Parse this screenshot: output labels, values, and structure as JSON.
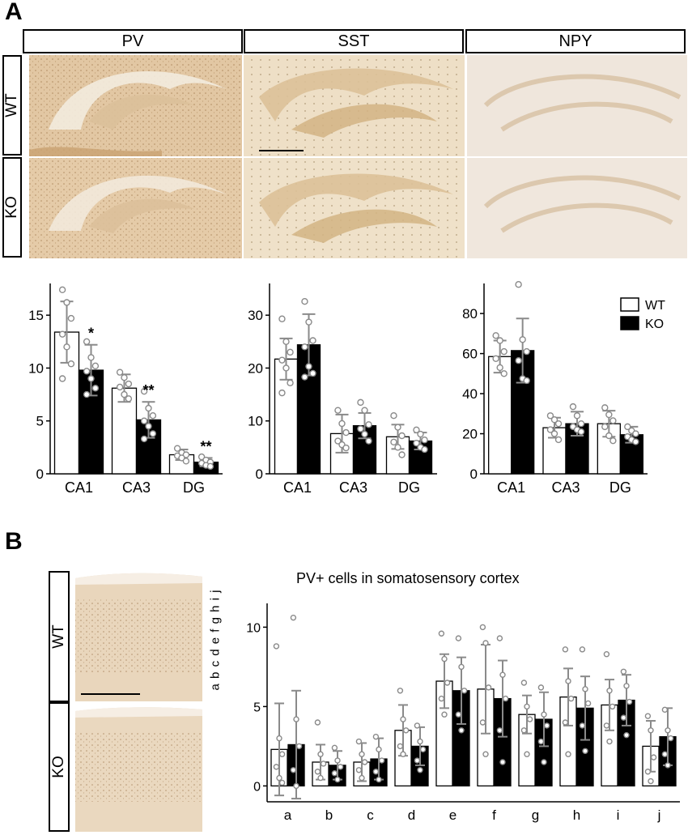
{
  "panel_labels": {
    "a": "A",
    "b": "B"
  },
  "stains": [
    "PV",
    "SST",
    "NPY"
  ],
  "genotypes": [
    "WT",
    "KO"
  ],
  "legend": {
    "wt": "WT",
    "ko": "KO"
  },
  "cortex_layers_label": "a b c d e f g h i j",
  "colors": {
    "wt_bar": "#ffffff",
    "ko_bar": "#000000",
    "error_bar": "#8a8a8a",
    "points": "#8a8a8a"
  },
  "chart_data": [
    {
      "type": "bar",
      "stain": "PV",
      "categories": [
        "CA1",
        "CA3",
        "DG"
      ],
      "ylim": [
        0,
        18
      ],
      "yticks": [
        0,
        5,
        10,
        15
      ],
      "series": [
        {
          "name": "WT",
          "values": [
            13.4,
            8.1,
            1.8
          ],
          "sd": [
            2.9,
            1.3,
            0.5
          ],
          "points": [
            [
              17.4,
              16.2,
              14.7,
              13.2,
              12.0,
              10.4,
              9.0
            ],
            [
              9.6,
              9.1,
              8.5,
              8.2,
              7.5,
              7.1
            ],
            [
              2.4,
              2.0,
              1.8,
              1.7,
              1.5,
              1.2
            ]
          ]
        },
        {
          "name": "KO",
          "values": [
            9.8,
            5.1,
            1.1
          ],
          "sd": [
            2.4,
            1.7,
            0.4
          ],
          "points": [
            [
              12.5,
              11.0,
              10.2,
              9.7,
              9.0,
              8.1,
              7.5
            ],
            [
              7.8,
              6.2,
              5.5,
              5.0,
              4.5,
              3.8,
              3.3
            ],
            [
              1.6,
              1.3,
              1.1,
              1.0,
              0.8,
              0.7
            ]
          ]
        }
      ],
      "significance": [
        "*",
        "**",
        "**"
      ]
    },
    {
      "type": "bar",
      "stain": "SST",
      "categories": [
        "CA1",
        "CA3",
        "DG"
      ],
      "ylim": [
        0,
        36
      ],
      "yticks": [
        0,
        10,
        20,
        30
      ],
      "series": [
        {
          "name": "WT",
          "values": [
            21.7,
            7.6,
            7.0
          ],
          "sd": [
            3.9,
            3.6,
            2.3
          ],
          "points": [
            [
              29.3,
              25.0,
              23.0,
              21.5,
              20.0,
              17.2,
              15.3
            ],
            [
              12.0,
              9.5,
              7.8,
              6.2,
              5.5,
              4.9
            ],
            [
              11.0,
              8.8,
              7.2,
              6.0,
              5.0,
              3.6
            ]
          ]
        },
        {
          "name": "KO",
          "values": [
            24.4,
            9.1,
            6.2
          ],
          "sd": [
            5.8,
            2.4,
            1.6
          ],
          "points": [
            [
              32.6,
              28.7,
              25.2,
              24.0,
              20.3,
              19.0,
              18.3
            ],
            [
              13.5,
              12.0,
              9.3,
              8.5,
              7.5,
              6.2
            ],
            [
              8.3,
              7.5,
              6.4,
              5.8,
              5.0,
              4.6
            ]
          ]
        }
      ]
    },
    {
      "type": "bar",
      "stain": "NPY",
      "categories": [
        "CA1",
        "CA3",
        "DG"
      ],
      "ylim": [
        0,
        95
      ],
      "yticks": [
        0,
        20,
        40,
        60,
        80
      ],
      "series": [
        {
          "name": "WT",
          "values": [
            58.5,
            23.0,
            25.0
          ],
          "sd": [
            8.0,
            5.0,
            6.5
          ],
          "points": [
            [
              69.0,
              66.5,
              61.0,
              57.5,
              53.0,
              50.0
            ],
            [
              29.0,
              27.0,
              25.0,
              22.0,
              20.0,
              17.0
            ],
            [
              33.0,
              29.5,
              26.5,
              23.5,
              19.0,
              16.5
            ]
          ]
        },
        {
          "name": "KO",
          "values": [
            61.5,
            25.0,
            19.5
          ],
          "sd": [
            16.0,
            6.0,
            4.0
          ],
          "points": [
            [
              94.5,
              67.0,
              61.0,
              56.5,
              47.5,
              46.5
            ],
            [
              33.5,
              29.0,
              25.0,
              23.5,
              22.0,
              21.0
            ],
            [
              23.5,
              21.5,
              20.0,
              18.5,
              17.0,
              16.0
            ]
          ]
        }
      ],
      "legend_position": "top-right"
    },
    {
      "type": "bar",
      "title": "PV+ cells in somatosensory cortex",
      "categories": [
        "a",
        "b",
        "c",
        "d",
        "e",
        "f",
        "g",
        "h",
        "i",
        "j"
      ],
      "ylim": [
        -1,
        11.5
      ],
      "yticks": [
        0,
        5,
        10
      ],
      "series": [
        {
          "name": "WT",
          "values": [
            2.3,
            1.5,
            1.5,
            3.5,
            6.6,
            6.1,
            4.5,
            5.6,
            5.1,
            2.5
          ],
          "sd": [
            2.9,
            1.1,
            1.2,
            1.6,
            1.7,
            2.8,
            1.2,
            1.8,
            1.6,
            1.6
          ],
          "points": [
            [
              8.8,
              3.0,
              2.0,
              1.2,
              0.5,
              0.2
            ],
            [
              4.0,
              2.0,
              1.4,
              0.9,
              0.5
            ],
            [
              2.8,
              2.0,
              1.5,
              1.0,
              0.5
            ],
            [
              6.0,
              4.2,
              3.5,
              2.5,
              2.0
            ],
            [
              9.6,
              8.0,
              6.5,
              5.5,
              4.5
            ],
            [
              10.0,
              9.0,
              6.2,
              4.0,
              2.0
            ],
            [
              6.5,
              5.0,
              4.2,
              3.5,
              2.0
            ],
            [
              8.6,
              6.6,
              5.5,
              4.0,
              2.0
            ],
            [
              8.3,
              6.0,
              5.0,
              3.8,
              2.8
            ],
            [
              4.4,
              3.5,
              1.8,
              0.9,
              0.3
            ]
          ]
        },
        {
          "name": "KO",
          "values": [
            2.6,
            1.3,
            1.7,
            2.5,
            6.0,
            5.5,
            4.2,
            4.9,
            5.4,
            3.1
          ],
          "sd": [
            3.4,
            0.9,
            1.3,
            1.2,
            2.1,
            2.4,
            1.7,
            2.0,
            1.6,
            1.8
          ],
          "points": [
            [
              10.6,
              4.2,
              2.5,
              1.0,
              0.0
            ],
            [
              2.4,
              1.6,
              1.2,
              0.8,
              0.4
            ],
            [
              3.1,
              2.3,
              1.6,
              0.9,
              0.4
            ],
            [
              3.8,
              2.8,
              2.3,
              1.6,
              1.0
            ],
            [
              9.3,
              7.5,
              6.0,
              4.5,
              3.5
            ],
            [
              9.3,
              7.0,
              5.5,
              3.5,
              1.5
            ],
            [
              6.2,
              4.5,
              3.8,
              2.8,
              1.5
            ],
            [
              8.6,
              6.1,
              5.2,
              3.8,
              2.2
            ],
            [
              7.2,
              6.3,
              5.3,
              4.3,
              3.2
            ],
            [
              4.8,
              3.5,
              3.0,
              2.0,
              1.3
            ]
          ]
        }
      ]
    }
  ]
}
